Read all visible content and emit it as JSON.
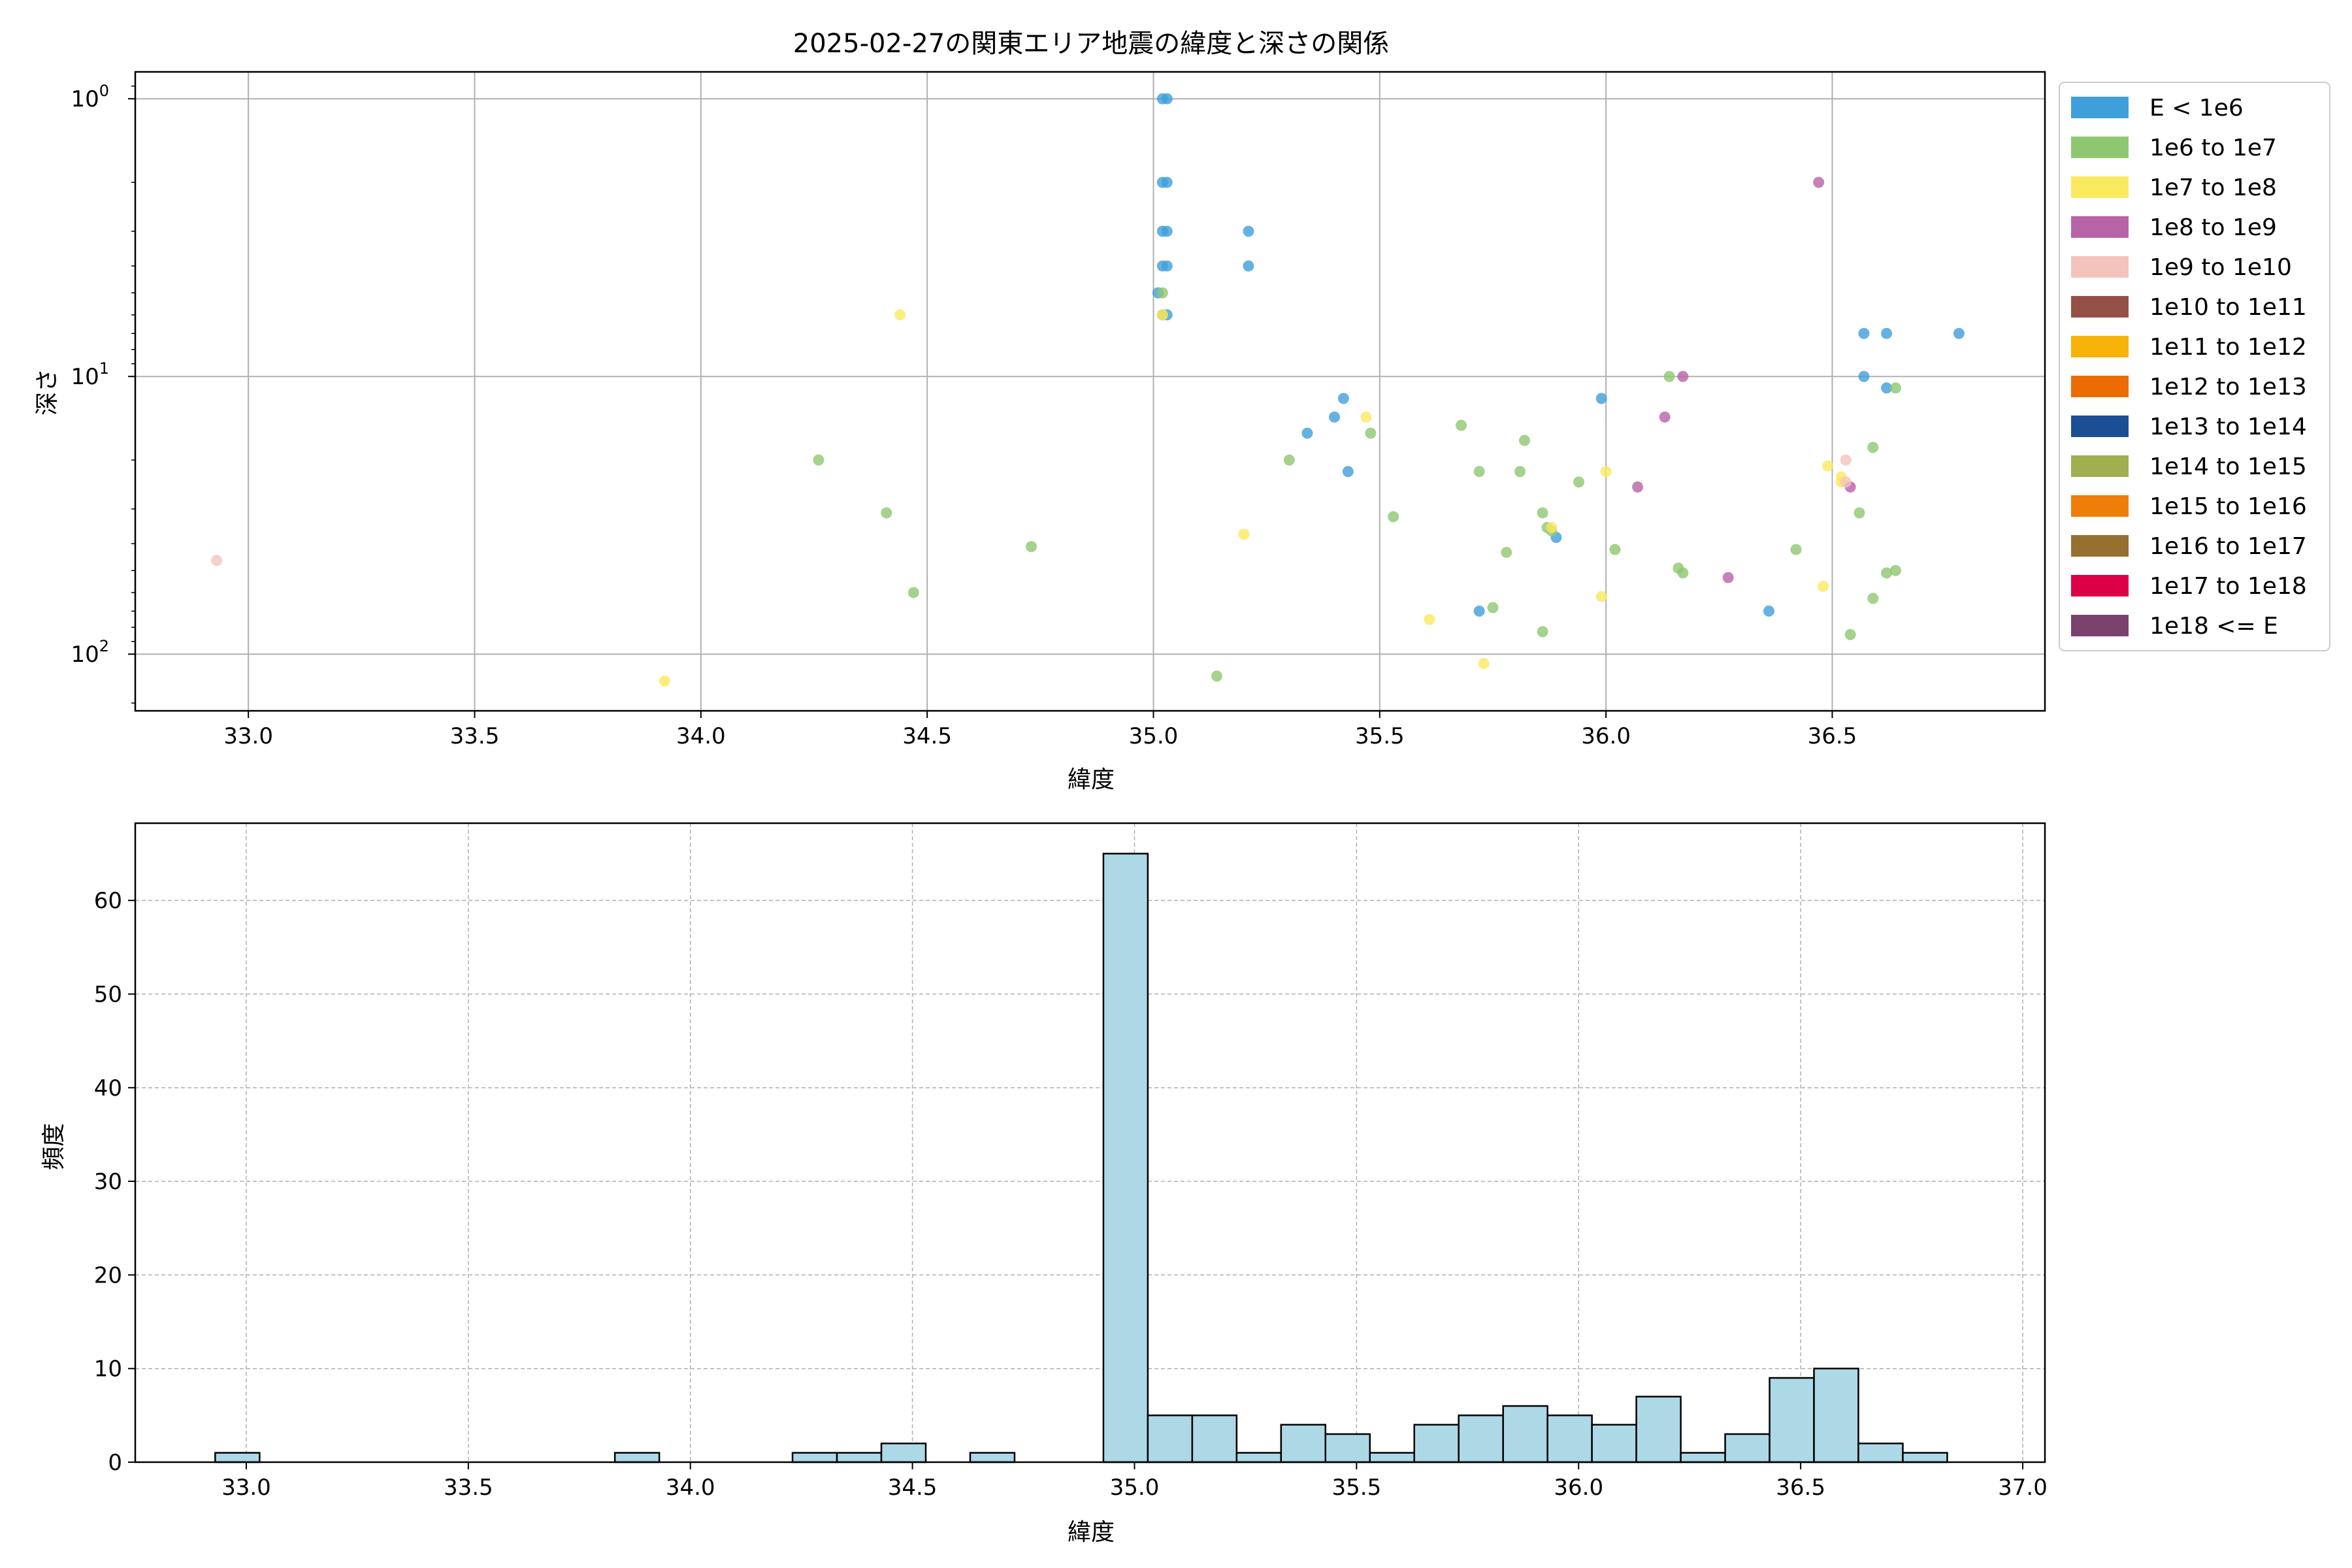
{
  "chart_data": [
    {
      "type": "scatter",
      "title": "2025-02-27の関東エリア地震の緯度と深さの関係",
      "xlabel": "緯度",
      "ylabel": "深さ",
      "xlim": [
        32.75,
        36.97
      ],
      "ylim": [
        160,
        0.8
      ],
      "y_scale": "log",
      "y_inverted": true,
      "grid": true,
      "legend_position": "outside-right",
      "x_ticks": [
        {
          "v": 33.0,
          "label": "33.0"
        },
        {
          "v": 33.5,
          "label": "33.5"
        },
        {
          "v": 34.0,
          "label": "34.0"
        },
        {
          "v": 34.5,
          "label": "34.5"
        },
        {
          "v": 35.0,
          "label": "35.0"
        },
        {
          "v": 35.5,
          "label": "35.5"
        },
        {
          "v": 36.0,
          "label": "36.0"
        },
        {
          "v": 36.5,
          "label": "36.5"
        }
      ],
      "y_ticks": [
        {
          "v": 1,
          "label": "10",
          "exp": "0"
        },
        {
          "v": 10,
          "label": "10",
          "exp": "1"
        },
        {
          "v": 100,
          "label": "10",
          "exp": "2"
        }
      ],
      "legend": [
        {
          "label": "E < 1e6",
          "color": "#3f9fdb"
        },
        {
          "label": "1e6 to 1e7",
          "color": "#8fc771"
        },
        {
          "label": "1e7 to 1e8",
          "color": "#fbe95f"
        },
        {
          "label": "1e8 to 1e9",
          "color": "#b863a6"
        },
        {
          "label": "1e9 to 1e10",
          "color": "#f4c3bc"
        },
        {
          "label": "1e10 to 1e11",
          "color": "#955148"
        },
        {
          "label": "1e11 to 1e12",
          "color": "#f8b30b"
        },
        {
          "label": "1e12 to 1e13",
          "color": "#ec6c04"
        },
        {
          "label": "1e13 to 1e14",
          "color": "#1c4e95"
        },
        {
          "label": "1e14 to 1e15",
          "color": "#a0ae50"
        },
        {
          "label": "1e15 to 1e16",
          "color": "#ee7e09"
        },
        {
          "label": "1e16 to 1e17",
          "color": "#957031"
        },
        {
          "label": "1e17 to 1e18",
          "color": "#de0046"
        },
        {
          "label": "1e18 <= E",
          "color": "#7a416d"
        }
      ],
      "series": [
        {
          "class": 0,
          "points": [
            [
              35.02,
              1
            ],
            [
              35.03,
              1
            ],
            [
              35.02,
              2
            ],
            [
              35.03,
              2
            ],
            [
              35.02,
              3
            ],
            [
              35.03,
              3
            ],
            [
              35.02,
              4
            ],
            [
              35.03,
              4
            ],
            [
              35.01,
              5
            ],
            [
              35.02,
              6
            ],
            [
              35.03,
              6
            ],
            [
              35.21,
              3
            ],
            [
              35.21,
              4
            ],
            [
              35.42,
              12
            ],
            [
              35.4,
              14
            ],
            [
              35.34,
              16
            ],
            [
              35.43,
              22
            ],
            [
              35.99,
              12
            ],
            [
              35.89,
              38
            ],
            [
              35.72,
              70
            ],
            [
              36.36,
              70
            ],
            [
              36.57,
              7
            ],
            [
              36.62,
              7
            ],
            [
              36.78,
              7
            ],
            [
              36.57,
              10
            ],
            [
              36.62,
              11
            ]
          ]
        },
        {
          "class": 1,
          "points": [
            [
              35.02,
              5
            ],
            [
              35.02,
              6
            ],
            [
              34.26,
              20
            ],
            [
              34.41,
              31
            ],
            [
              34.73,
              41
            ],
            [
              34.47,
              60
            ],
            [
              35.3,
              20
            ],
            [
              35.48,
              16
            ],
            [
              35.53,
              32
            ],
            [
              35.68,
              15
            ],
            [
              35.72,
              22
            ],
            [
              35.81,
              22
            ],
            [
              35.82,
              17
            ],
            [
              35.86,
              31
            ],
            [
              35.87,
              35
            ],
            [
              35.88,
              36
            ],
            [
              35.94,
              24
            ],
            [
              35.78,
              43
            ],
            [
              35.75,
              68
            ],
            [
              35.86,
              83
            ],
            [
              35.14,
              120
            ],
            [
              36.02,
              42
            ],
            [
              36.14,
              10
            ],
            [
              36.16,
              49
            ],
            [
              36.17,
              51
            ],
            [
              36.42,
              42
            ],
            [
              36.59,
              18
            ],
            [
              36.56,
              31
            ],
            [
              36.62,
              51
            ],
            [
              36.64,
              50
            ],
            [
              36.59,
              63
            ],
            [
              36.54,
              85
            ],
            [
              36.64,
              11
            ]
          ]
        },
        {
          "class": 2,
          "points": [
            [
              34.44,
              6
            ],
            [
              35.02,
              6
            ],
            [
              35.47,
              14
            ],
            [
              35.2,
              37
            ],
            [
              35.61,
              75
            ],
            [
              35.73,
              108
            ],
            [
              33.92,
              125
            ],
            [
              36.0,
              22
            ],
            [
              35.88,
              35
            ],
            [
              35.99,
              62
            ],
            [
              36.48,
              57
            ],
            [
              36.49,
              21
            ],
            [
              36.52,
              23
            ],
            [
              36.52,
              24
            ]
          ]
        },
        {
          "class": 3,
          "points": [
            [
              36.47,
              2
            ],
            [
              36.17,
              10
            ],
            [
              36.13,
              14
            ],
            [
              36.07,
              25
            ],
            [
              36.27,
              53
            ],
            [
              36.54,
              25
            ]
          ]
        },
        {
          "class": 4,
          "points": [
            [
              32.93,
              46
            ],
            [
              36.53,
              20
            ],
            [
              36.53,
              24
            ]
          ]
        }
      ]
    },
    {
      "type": "bar",
      "title": "",
      "xlabel": "緯度",
      "ylabel": "頻度",
      "xlim": [
        32.75,
        37.05
      ],
      "ylim": [
        0,
        68.25
      ],
      "grid": true,
      "x_ticks": [
        {
          "v": 33.0,
          "label": "33.0"
        },
        {
          "v": 33.5,
          "label": "33.5"
        },
        {
          "v": 34.0,
          "label": "34.0"
        },
        {
          "v": 34.5,
          "label": "34.5"
        },
        {
          "v": 35.0,
          "label": "35.0"
        },
        {
          "v": 35.5,
          "label": "35.5"
        },
        {
          "v": 36.0,
          "label": "36.0"
        },
        {
          "v": 36.5,
          "label": "36.5"
        },
        {
          "v": 37.0,
          "label": "37.0"
        }
      ],
      "y_ticks": [
        {
          "v": 0,
          "label": "0"
        },
        {
          "v": 10,
          "label": "10"
        },
        {
          "v": 20,
          "label": "20"
        },
        {
          "v": 30,
          "label": "30"
        },
        {
          "v": 40,
          "label": "40"
        },
        {
          "v": 50,
          "label": "50"
        },
        {
          "v": 60,
          "label": "60"
        }
      ],
      "bar_color": "#add8e6",
      "bins": [
        {
          "x0": 32.93,
          "x1": 33.03,
          "count": 1
        },
        {
          "x0": 33.03,
          "x1": 33.13,
          "count": 0
        },
        {
          "x0": 33.13,
          "x1": 33.23,
          "count": 0
        },
        {
          "x0": 33.23,
          "x1": 33.33,
          "count": 0
        },
        {
          "x0": 33.33,
          "x1": 33.43,
          "count": 0
        },
        {
          "x0": 33.43,
          "x1": 33.53,
          "count": 0
        },
        {
          "x0": 33.53,
          "x1": 33.63,
          "count": 0
        },
        {
          "x0": 33.63,
          "x1": 33.73,
          "count": 0
        },
        {
          "x0": 33.73,
          "x1": 33.83,
          "count": 0
        },
        {
          "x0": 33.83,
          "x1": 33.93,
          "count": 1
        },
        {
          "x0": 33.93,
          "x1": 34.03,
          "count": 0
        },
        {
          "x0": 34.03,
          "x1": 34.13,
          "count": 0
        },
        {
          "x0": 34.13,
          "x1": 34.23,
          "count": 0
        },
        {
          "x0": 34.23,
          "x1": 34.33,
          "count": 1
        },
        {
          "x0": 34.33,
          "x1": 34.43,
          "count": 1
        },
        {
          "x0": 34.43,
          "x1": 34.53,
          "count": 2
        },
        {
          "x0": 34.53,
          "x1": 34.63,
          "count": 0
        },
        {
          "x0": 34.63,
          "x1": 34.73,
          "count": 1
        },
        {
          "x0": 34.73,
          "x1": 34.83,
          "count": 0
        },
        {
          "x0": 34.83,
          "x1": 34.93,
          "count": 0
        },
        {
          "x0": 34.93,
          "x1": 35.03,
          "count": 65
        },
        {
          "x0": 35.03,
          "x1": 35.13,
          "count": 5
        },
        {
          "x0": 35.13,
          "x1": 35.23,
          "count": 5
        },
        {
          "x0": 35.23,
          "x1": 35.33,
          "count": 1
        },
        {
          "x0": 35.33,
          "x1": 35.43,
          "count": 4
        },
        {
          "x0": 35.43,
          "x1": 35.53,
          "count": 3
        },
        {
          "x0": 35.53,
          "x1": 35.63,
          "count": 1
        },
        {
          "x0": 35.63,
          "x1": 35.73,
          "count": 4
        },
        {
          "x0": 35.73,
          "x1": 35.83,
          "count": 5
        },
        {
          "x0": 35.83,
          "x1": 35.93,
          "count": 6
        },
        {
          "x0": 35.93,
          "x1": 36.03,
          "count": 5
        },
        {
          "x0": 36.03,
          "x1": 36.13,
          "count": 4
        },
        {
          "x0": 36.13,
          "x1": 36.23,
          "count": 7
        },
        {
          "x0": 36.23,
          "x1": 36.33,
          "count": 1
        },
        {
          "x0": 36.33,
          "x1": 36.43,
          "count": 3
        },
        {
          "x0": 36.43,
          "x1": 36.53,
          "count": 9
        },
        {
          "x0": 36.53,
          "x1": 36.63,
          "count": 10
        },
        {
          "x0": 36.63,
          "x1": 36.73,
          "count": 2
        },
        {
          "x0": 36.73,
          "x1": 36.83,
          "count": 1
        }
      ]
    }
  ]
}
